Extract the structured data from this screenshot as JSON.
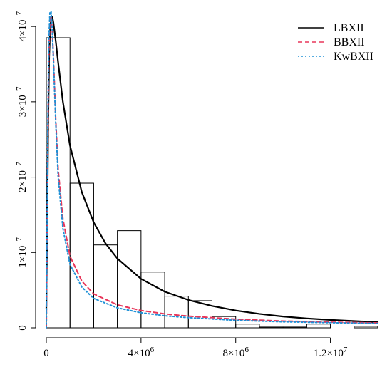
{
  "chart_data": {
    "type": "histogram",
    "xlim": [
      0,
      14000000
    ],
    "ylim": [
      0,
      4.2e-07
    ],
    "x_ticks": [
      {
        "value": 0,
        "base": "0",
        "exp": ""
      },
      {
        "value": 4000000,
        "base": "4×10",
        "exp": "6"
      },
      {
        "value": 8000000,
        "base": "8×10",
        "exp": "6"
      },
      {
        "value": 12000000,
        "base": "1.2×10",
        "exp": "7"
      }
    ],
    "y_ticks": [
      {
        "value": 0,
        "base": "0",
        "exp": ""
      },
      {
        "value": 1e-07,
        "base": "1×10",
        "exp": "−7"
      },
      {
        "value": 2e-07,
        "base": "2×10",
        "exp": "−7"
      },
      {
        "value": 3e-07,
        "base": "3×10",
        "exp": "−7"
      },
      {
        "value": 4e-07,
        "base": "4×10",
        "exp": "−7"
      }
    ],
    "histogram": {
      "bins": [
        [
          0,
          1000000
        ],
        [
          1000000,
          2000000
        ],
        [
          2000000,
          3000000
        ],
        [
          3000000,
          4000000
        ],
        [
          4000000,
          5000000
        ],
        [
          5000000,
          6000000
        ],
        [
          6000000,
          7000000
        ],
        [
          7000000,
          8000000
        ],
        [
          8000000,
          9000000
        ],
        [
          9000000,
          10000000
        ],
        [
          10000000,
          11000000
        ],
        [
          11000000,
          12000000
        ],
        [
          12000000,
          13000000
        ],
        [
          13000000,
          14000000
        ]
      ],
      "densities": [
        3.85e-07,
        1.92e-07,
        1.1e-07,
        1.29e-07,
        7.4e-08,
        4.2e-08,
        3.6e-08,
        1.5e-08,
        5e-09,
        1e-09,
        1e-09,
        5e-09,
        0,
        2e-09
      ]
    },
    "series": [
      {
        "name": "LBXII",
        "color": "#000000",
        "dash": "solid",
        "x": [
          0,
          40000,
          80000,
          120000,
          160000,
          200000,
          250000,
          300000,
          400000,
          500000,
          700000,
          1000000,
          1500000,
          2000000,
          2500000,
          3000000,
          4000000,
          5000000,
          6000000,
          7000000,
          8000000,
          9000000,
          10000000,
          11000000,
          12000000,
          13000000,
          14000000
        ],
        "y": [
          2.5e-08,
          1.35e-07,
          2.75e-07,
          3.6e-07,
          3.95e-07,
          4.1e-07,
          4.13e-07,
          4.05e-07,
          3.8e-07,
          3.52e-07,
          3e-07,
          2.42e-07,
          1.8e-07,
          1.4e-07,
          1.12e-07,
          9.2e-08,
          6.5e-08,
          4.8e-08,
          3.7e-08,
          2.9e-08,
          2.3e-08,
          1.85e-08,
          1.5e-08,
          1.25e-08,
          1.05e-08,
          9e-09,
          7.5e-09
        ]
      },
      {
        "name": "BBXII",
        "color": "#e8365a",
        "dash": "dashed",
        "x": [
          0,
          30000,
          60000,
          100000,
          150000,
          200000,
          250000,
          300000,
          400000,
          500000,
          700000,
          1000000,
          1500000,
          2000000,
          3000000,
          4000000,
          5000000,
          6000000,
          8000000,
          10000000,
          12000000,
          14000000
        ],
        "y": [
          0,
          1.1e-07,
          2.35e-07,
          3.55e-07,
          4.05e-07,
          4.15e-07,
          3.95e-07,
          3.6e-07,
          2.75e-07,
          2.1e-07,
          1.45e-07,
          9.5e-08,
          6.2e-08,
          4.5e-08,
          3.05e-08,
          2.3e-08,
          1.85e-08,
          1.55e-08,
          1.15e-08,
          9e-09,
          7.5e-09,
          6.5e-09
        ]
      },
      {
        "name": "KwBXII",
        "color": "#1e90d6",
        "dash": "dotted",
        "x": [
          0,
          30000,
          60000,
          100000,
          150000,
          200000,
          250000,
          300000,
          400000,
          500000,
          700000,
          1000000,
          1500000,
          2000000,
          3000000,
          4000000,
          5000000,
          6000000,
          8000000,
          10000000,
          12000000,
          14000000
        ],
        "y": [
          0,
          1.3e-07,
          2.6e-07,
          3.75e-07,
          4.18e-07,
          4.2e-07,
          3.95e-07,
          3.55e-07,
          2.7e-07,
          2e-07,
          1.32e-07,
          8.4e-08,
          5.4e-08,
          3.9e-08,
          2.65e-08,
          2e-08,
          1.6e-08,
          1.35e-08,
          1e-08,
          8e-09,
          6.8e-09,
          5.8e-09
        ]
      }
    ],
    "legend": {
      "position": "top-right"
    },
    "grid": false
  }
}
